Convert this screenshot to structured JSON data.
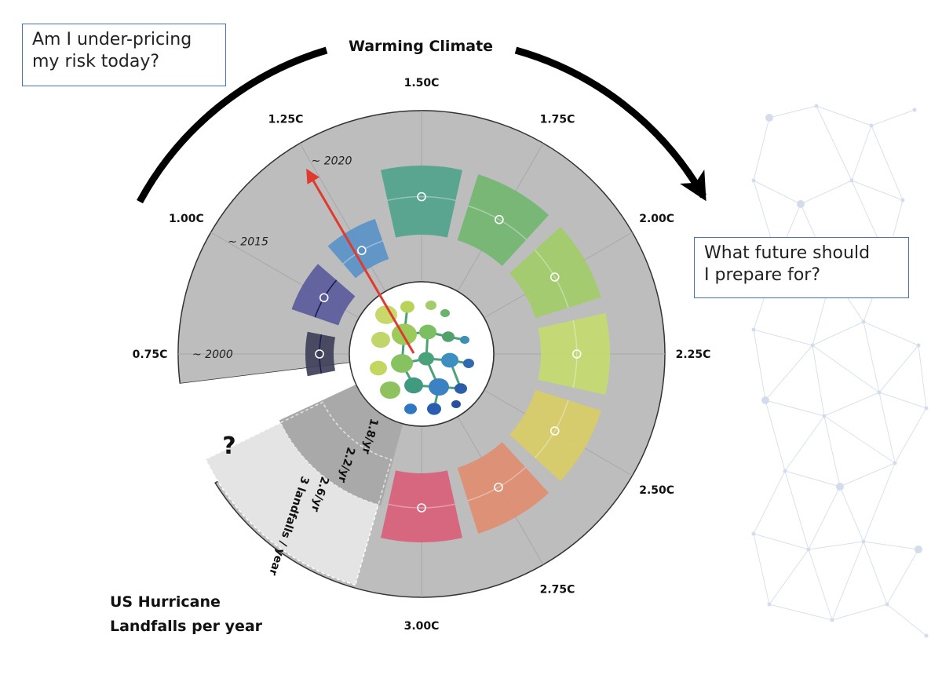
{
  "header": {
    "title": "Warming Climate"
  },
  "callouts": {
    "left": [
      "Am I under-pricing",
      "my risk today?"
    ],
    "right": [
      "What future should",
      "I prepare for?"
    ]
  },
  "footer": {
    "title_lines": [
      "US Hurricane",
      "Landfalls per year"
    ]
  },
  "dial": {
    "warming_levels": [
      {
        "label": "0.75C",
        "year": "~ 2000",
        "color": "#3f3f5a",
        "value_frac": 0.5
      },
      {
        "label": "1.00C",
        "year": "~ 2015",
        "color": "#5a5b9c",
        "value_frac": 0.5
      },
      {
        "label": "1.25C",
        "year": "~ 2020",
        "color": "#5a93c8",
        "value_frac": 0.45
      },
      {
        "label": "1.50C",
        "color": "#50a38c",
        "value_frac": 0.55
      },
      {
        "label": "1.75C",
        "color": "#72b670",
        "value_frac": 0.52
      },
      {
        "label": "2.00C",
        "color": "#a3cc6a",
        "value_frac": 0.5
      },
      {
        "label": "2.25C",
        "color": "#c4da70",
        "value_frac": 0.52
      },
      {
        "label": "2.50C",
        "color": "#d8cc66",
        "value_frac": 0.5
      },
      {
        "label": "2.75C",
        "color": "#e08e72",
        "value_frac": 0.5
      },
      {
        "label": "3.00C",
        "color": "#d9607a",
        "value_frac": 0.5
      }
    ],
    "rate_labels": [
      "1.8/yr",
      "2.2/yr",
      "2.6/yr",
      "3 landfalls / year"
    ],
    "unknown_marker": "?",
    "pointer_color": "#e03a2f",
    "dial_background": "#bdbdbd"
  }
}
